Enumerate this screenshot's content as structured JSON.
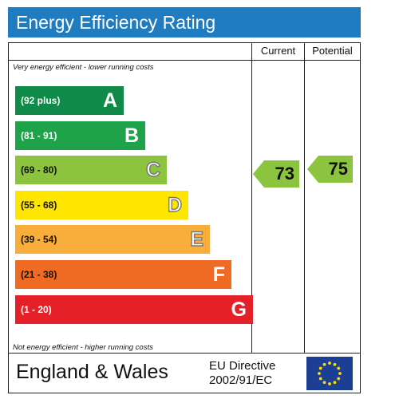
{
  "header": {
    "title": "Energy Efficiency Rating"
  },
  "columns": {
    "current": "Current",
    "potential": "Potential"
  },
  "notes": {
    "top": "Very energy efficient - lower running costs",
    "bottom": "Not energy efficient - higher running costs"
  },
  "footer": {
    "region": "England & Wales",
    "directive_line1": "EU Directive",
    "directive_line2": "2002/91/EC",
    "flag_icon": "eu-flag-icon"
  },
  "chart_data": {
    "type": "bar",
    "bands": [
      {
        "range": "(92 plus)",
        "letter": "A",
        "min": 92,
        "max": 100,
        "color": "#0f8a49",
        "range_color": "#ffffff",
        "letter_style": "solid"
      },
      {
        "range": "(81 - 91)",
        "letter": "B",
        "min": 81,
        "max": 91,
        "color": "#1ea24a",
        "range_color": "#ffffff",
        "letter_style": "solid"
      },
      {
        "range": "(69 - 80)",
        "letter": "C",
        "min": 69,
        "max": 80,
        "color": "#8cc43f",
        "range_color": "#111111",
        "letter_style": "outline"
      },
      {
        "range": "(55 - 68)",
        "letter": "D",
        "min": 55,
        "max": 68,
        "color": "#ffe600",
        "range_color": "#111111",
        "letter_style": "outline"
      },
      {
        "range": "(39 - 54)",
        "letter": "E",
        "min": 39,
        "max": 54,
        "color": "#f9ae3b",
        "range_color": "#111111",
        "letter_style": "outline"
      },
      {
        "range": "(21 - 38)",
        "letter": "F",
        "min": 21,
        "max": 38,
        "color": "#ef6b23",
        "range_color": "#111111",
        "letter_style": "solid"
      },
      {
        "range": "(1 - 20)",
        "letter": "G",
        "min": 1,
        "max": 20,
        "color": "#e42028",
        "range_color": "#ffffff",
        "letter_style": "solid"
      }
    ],
    "current": {
      "value": 73,
      "color": "#8cc43f"
    },
    "potential": {
      "value": 75,
      "color": "#8cc43f"
    }
  }
}
